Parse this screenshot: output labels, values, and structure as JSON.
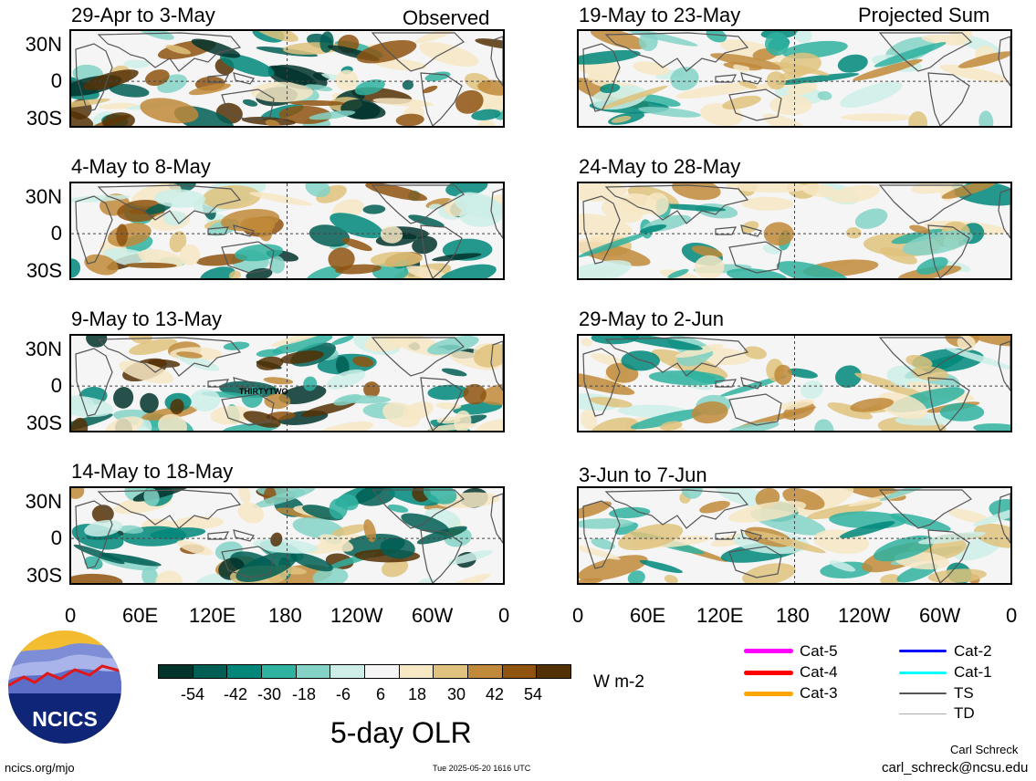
{
  "panels": [
    {
      "date_range": "29-Apr to 3-May",
      "label": "Observed"
    },
    {
      "date_range": "4-May to 8-May",
      "label": ""
    },
    {
      "date_range": "9-May to 13-May",
      "label": "",
      "annotation": "THIRTYTWO"
    },
    {
      "date_range": "14-May to 18-May",
      "label": ""
    },
    {
      "date_range": "19-May to 23-May",
      "label": "Projected Sum"
    },
    {
      "date_range": "24-May to 28-May",
      "label": ""
    },
    {
      "date_range": "29-May to 2-Jun",
      "label": ""
    },
    {
      "date_range": "3-Jun to 7-Jun",
      "label": ""
    }
  ],
  "lat_ticks": [
    "30N",
    "0",
    "30S"
  ],
  "lon_ticks": [
    "0",
    "60E",
    "120E",
    "180",
    "120W",
    "60W",
    "0"
  ],
  "colorbar": {
    "colors": [
      "#01332b",
      "#005e53",
      "#00877a",
      "#2fb2a0",
      "#84d2c6",
      "#cdeee7",
      "#f5f5f5",
      "#f7e8c4",
      "#dfc27d",
      "#c08a3a",
      "#8e5410",
      "#543005"
    ],
    "labels": [
      "-54",
      "-42",
      "-30",
      "-18",
      "-6",
      "6",
      "18",
      "30",
      "42",
      "54"
    ],
    "units": "W m-2"
  },
  "title": "5-day OLR",
  "storm_legend": [
    {
      "label": "Cat-5",
      "color": "#ff00ff"
    },
    {
      "label": "Cat-4",
      "color": "#ff0000"
    },
    {
      "label": "Cat-3",
      "color": "#ffa500"
    },
    {
      "label": "Cat-2",
      "color": "#0000ff"
    },
    {
      "label": "Cat-1",
      "color": "#00ffff"
    },
    {
      "label": "TS",
      "color": "#555555"
    },
    {
      "label": "TD",
      "color": "#aaaaaa"
    }
  ],
  "logo_text": "NCICS",
  "footer": {
    "left": "ncics.org/mjo",
    "center": "Tue 2025-05-20 1616 UTC",
    "author": "Carl Schreck",
    "email": "carl_schreck@ncsu.edu"
  }
}
